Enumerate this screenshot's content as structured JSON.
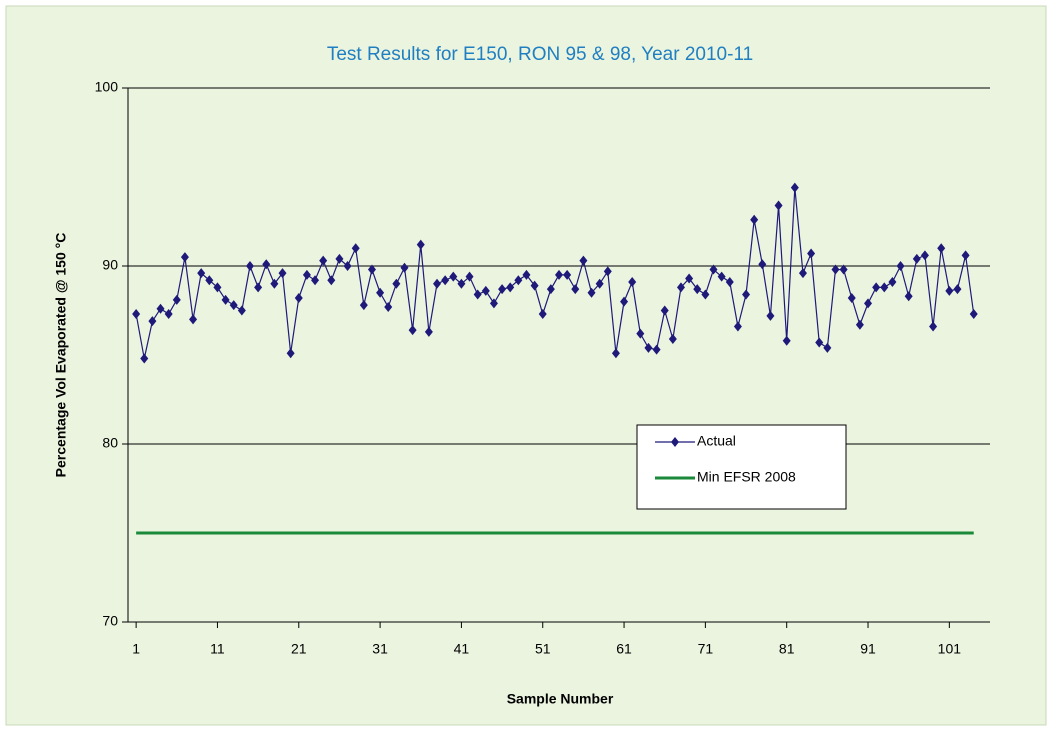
{
  "chart_data": {
    "type": "line",
    "title": "Test Results for E150, RON 95 & 98, Year 2010-11",
    "x_label": "Sample Number",
    "y_label": "Percentage Vol Evaporated @ 150  °C",
    "x": [
      1,
      2,
      3,
      4,
      5,
      6,
      7,
      8,
      9,
      10,
      11,
      12,
      13,
      14,
      15,
      16,
      17,
      18,
      19,
      20,
      21,
      22,
      23,
      24,
      25,
      26,
      27,
      28,
      29,
      30,
      31,
      32,
      33,
      34,
      35,
      36,
      37,
      38,
      39,
      40,
      41,
      42,
      43,
      44,
      45,
      46,
      47,
      48,
      49,
      50,
      51,
      52,
      53,
      54,
      55,
      56,
      57,
      58,
      59,
      60,
      61,
      62,
      63,
      64,
      65,
      66,
      67,
      68,
      69,
      70,
      71,
      72,
      73,
      74,
      75,
      76,
      77,
      78,
      79,
      80,
      81,
      82,
      83,
      84,
      85,
      86,
      87,
      88,
      89,
      90,
      91,
      92,
      93,
      94,
      95,
      96,
      97,
      98,
      99,
      100,
      101,
      102,
      103,
      104
    ],
    "series": [
      {
        "name": "Actual",
        "color": "#1f1a7a",
        "marker": "diamond",
        "values": [
          87.3,
          84.8,
          86.9,
          87.6,
          87.3,
          88.1,
          90.5,
          87.0,
          89.6,
          89.2,
          88.8,
          88.1,
          87.8,
          87.5,
          90.0,
          88.8,
          90.1,
          89.0,
          89.6,
          85.1,
          88.2,
          89.5,
          89.2,
          90.3,
          89.2,
          90.4,
          90.0,
          91.0,
          87.8,
          89.8,
          88.5,
          87.7,
          89.0,
          89.9,
          86.4,
          91.2,
          86.3,
          89.0,
          89.2,
          89.4,
          89.0,
          89.4,
          88.4,
          88.6,
          87.9,
          88.7,
          88.8,
          89.2,
          89.5,
          88.9,
          87.3,
          88.7,
          89.5,
          89.5,
          88.7,
          90.3,
          88.5,
          89.0,
          89.7,
          85.1,
          88.0,
          89.1,
          86.2,
          85.4,
          85.3,
          87.5,
          85.9,
          88.8,
          89.3,
          88.7,
          88.4,
          89.8,
          89.4,
          89.1,
          86.6,
          88.4,
          92.6,
          90.1,
          87.2,
          93.4,
          85.8,
          94.4,
          89.6,
          90.7,
          85.7,
          85.4,
          89.8,
          89.8,
          88.2,
          86.7,
          87.9,
          88.8,
          88.8,
          89.1,
          90.0,
          88.3,
          90.4,
          90.6,
          86.6,
          91.0,
          88.6,
          88.7,
          90.6,
          87.3
        ]
      },
      {
        "name": "Min EFSR 2008",
        "color": "#1a8a3a",
        "x": [
          1,
          104
        ],
        "values": [
          75,
          75
        ]
      }
    ],
    "xlim": [
      0,
      106
    ],
    "xticks": [
      1,
      11,
      21,
      31,
      41,
      51,
      61,
      71,
      81,
      91,
      101
    ],
    "ylim": [
      70,
      100
    ],
    "yticks": [
      70,
      80,
      90,
      100
    ],
    "grid": true,
    "legend": "center-right"
  }
}
